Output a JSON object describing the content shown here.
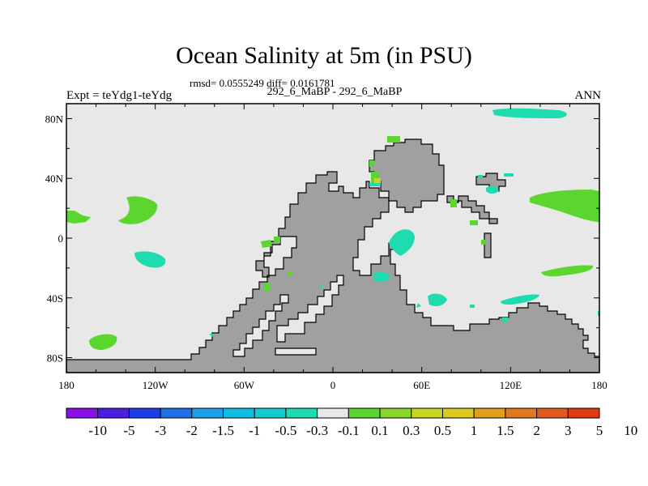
{
  "title": "Ocean Salinity at 5m (in PSU)",
  "stats": "rmsd= 0.0555249 diff= 0.0161781",
  "experiment": "Expt = teYdg1-teYdg",
  "subtitle": "292_6_MaBP - 292_6_MaBP",
  "season": "ANN",
  "map": {
    "ocean_color": "#e8e8e8",
    "land_color": "#a0a0a0",
    "lon_range": [
      -180,
      180
    ],
    "lat_range": [
      -90,
      90
    ]
  },
  "axes": {
    "x_ticks": [
      {
        "value": -180,
        "label": "180"
      },
      {
        "value": -120,
        "label": "120W"
      },
      {
        "value": -60,
        "label": "60W"
      },
      {
        "value": 0,
        "label": "0"
      },
      {
        "value": 60,
        "label": "60E"
      },
      {
        "value": 120,
        "label": "120E"
      },
      {
        "value": 180,
        "label": "180"
      }
    ],
    "y_ticks": [
      {
        "value": 80,
        "label": "80N"
      },
      {
        "value": 40,
        "label": "40N"
      },
      {
        "value": 0,
        "label": "0"
      },
      {
        "value": -40,
        "label": "40S"
      },
      {
        "value": -80,
        "label": "80S"
      }
    ]
  },
  "colorbar": {
    "colors": [
      "#8b10e8",
      "#4b1ee0",
      "#1e3ce6",
      "#1e6ee6",
      "#1e9ee6",
      "#10bfe0",
      "#10cccc",
      "#1edcb0",
      "#e8e8e8",
      "#5ad62e",
      "#8ad62e",
      "#c8d622",
      "#dcc81e",
      "#e0a01e",
      "#e07a1e",
      "#e05a1e",
      "#e03a14"
    ],
    "labels": [
      "-10",
      "-5",
      "-3",
      "-2",
      "-1.5",
      "-1",
      "-0.5",
      "-0.3",
      "-0.1",
      "0.1",
      "0.3",
      "0.5",
      "1",
      "1.5",
      "2",
      "3",
      "5",
      "10"
    ]
  }
}
